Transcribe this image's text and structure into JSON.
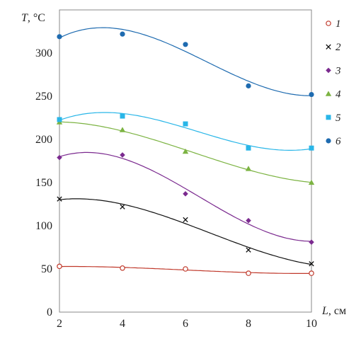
{
  "chart_data": {
    "type": "scatter",
    "title": "",
    "xlabel": "L, см",
    "ylabel": "T, °C",
    "xlim": [
      2,
      10
    ],
    "ylim": [
      0,
      350
    ],
    "x_ticks": [
      "2",
      "4",
      "6",
      "8",
      "10"
    ],
    "y_ticks": [
      "0",
      "50",
      "100",
      "150",
      "200",
      "250",
      "300"
    ],
    "x": [
      2,
      4,
      6,
      8,
      10
    ],
    "grid": false,
    "legend_position": "right",
    "series": [
      {
        "name": "1",
        "marker": "open-circle",
        "color": "#c0392b",
        "values": [
          53,
          51,
          50,
          45,
          45
        ]
      },
      {
        "name": "2",
        "marker": "x",
        "color": "#111111",
        "values": [
          131,
          122,
          107,
          72,
          56
        ]
      },
      {
        "name": "3",
        "marker": "diamond",
        "color": "#7b2a8f",
        "values": [
          179,
          182,
          137,
          106,
          81
        ]
      },
      {
        "name": "4",
        "marker": "triangle",
        "color": "#7cb342",
        "values": [
          220,
          211,
          186,
          166,
          150
        ]
      },
      {
        "name": "5",
        "marker": "square",
        "color": "#29b6e8",
        "values": [
          223,
          227,
          218,
          190,
          190
        ]
      },
      {
        "name": "6",
        "marker": "filled-circle",
        "color": "#1e6bb0",
        "values": [
          319,
          322,
          310,
          262,
          252
        ]
      }
    ]
  }
}
